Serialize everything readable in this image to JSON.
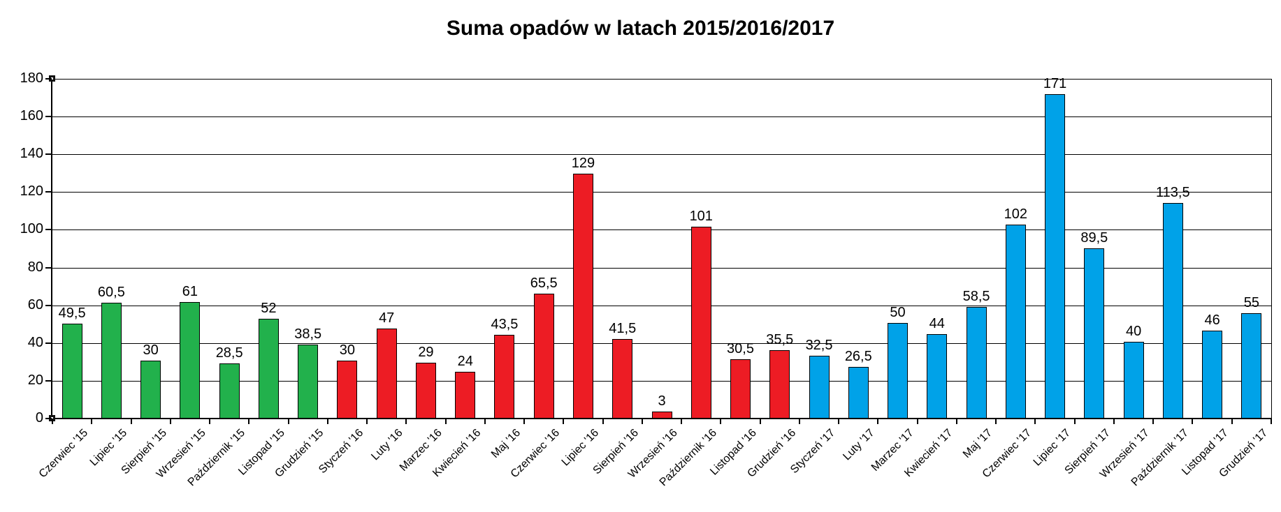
{
  "title": "Suma opadów w latach 2015/2016/2017",
  "chart_data": {
    "type": "bar",
    "title": "Suma opadów w latach 2015/2016/2017",
    "xlabel": "",
    "ylabel": "",
    "ylim": [
      0,
      180
    ],
    "yticks": [
      0,
      20,
      40,
      60,
      80,
      100,
      120,
      140,
      160,
      180
    ],
    "grid": true,
    "legend": "none",
    "decimal_separator": ",",
    "bar_border_color": "#000000",
    "groups": [
      {
        "year": "2015",
        "color": "#22B14C",
        "months": [
          {
            "label": "Czerwiec '15",
            "value": 49.5,
            "display": "49,5"
          },
          {
            "label": "Lipiec '15",
            "value": 60.5,
            "display": "60,5"
          },
          {
            "label": "Sierpień '15",
            "value": 30,
            "display": "30"
          },
          {
            "label": "Wrzesień '15",
            "value": 61,
            "display": "61"
          },
          {
            "label": "Październik '15",
            "value": 28.5,
            "display": "28,5"
          },
          {
            "label": "Listopad '15",
            "value": 52,
            "display": "52"
          },
          {
            "label": "Grudzień '15",
            "value": 38.5,
            "display": "38,5"
          }
        ]
      },
      {
        "year": "2016",
        "color": "#ED1C24",
        "months": [
          {
            "label": "Styczeń '16",
            "value": 30,
            "display": "30"
          },
          {
            "label": "Luty '16",
            "value": 47,
            "display": "47"
          },
          {
            "label": "Marzec '16",
            "value": 29,
            "display": "29"
          },
          {
            "label": "Kwiecień '16",
            "value": 24,
            "display": "24"
          },
          {
            "label": "Maj '16",
            "value": 43.5,
            "display": "43,5"
          },
          {
            "label": "Czerwiec '16",
            "value": 65.5,
            "display": "65,5"
          },
          {
            "label": "Lipiec '16",
            "value": 129,
            "display": "129"
          },
          {
            "label": "Sierpień '16",
            "value": 41.5,
            "display": "41,5"
          },
          {
            "label": "Wrzesień '16",
            "value": 3,
            "display": "3"
          },
          {
            "label": "Październik '16",
            "value": 101,
            "display": "101"
          },
          {
            "label": "Listopad '16",
            "value": 30.5,
            "display": "30,5"
          },
          {
            "label": "Grudzień '16",
            "value": 35.5,
            "display": "35,5"
          }
        ]
      },
      {
        "year": "2017",
        "color": "#00A2E8",
        "months": [
          {
            "label": "Styczeń '17",
            "value": 32.5,
            "display": "32,5"
          },
          {
            "label": "Luty '17",
            "value": 26.5,
            "display": "26,5"
          },
          {
            "label": "Marzec '17",
            "value": 50,
            "display": "50"
          },
          {
            "label": "Kwiecień '17",
            "value": 44,
            "display": "44"
          },
          {
            "label": "Maj '17",
            "value": 58.5,
            "display": "58,5"
          },
          {
            "label": "Czerwiec '17",
            "value": 102,
            "display": "102"
          },
          {
            "label": "Lipiec '17",
            "value": 171,
            "display": "171"
          },
          {
            "label": "Sierpień '17",
            "value": 89.5,
            "display": "89,5"
          },
          {
            "label": "Wrzesień '17",
            "value": 40,
            "display": "40"
          },
          {
            "label": "Październik '17",
            "value": 113.5,
            "display": "113,5"
          },
          {
            "label": "Listopad '17",
            "value": 46,
            "display": "46"
          },
          {
            "label": "Grudzień '17",
            "value": 55,
            "display": "55"
          }
        ]
      }
    ]
  }
}
